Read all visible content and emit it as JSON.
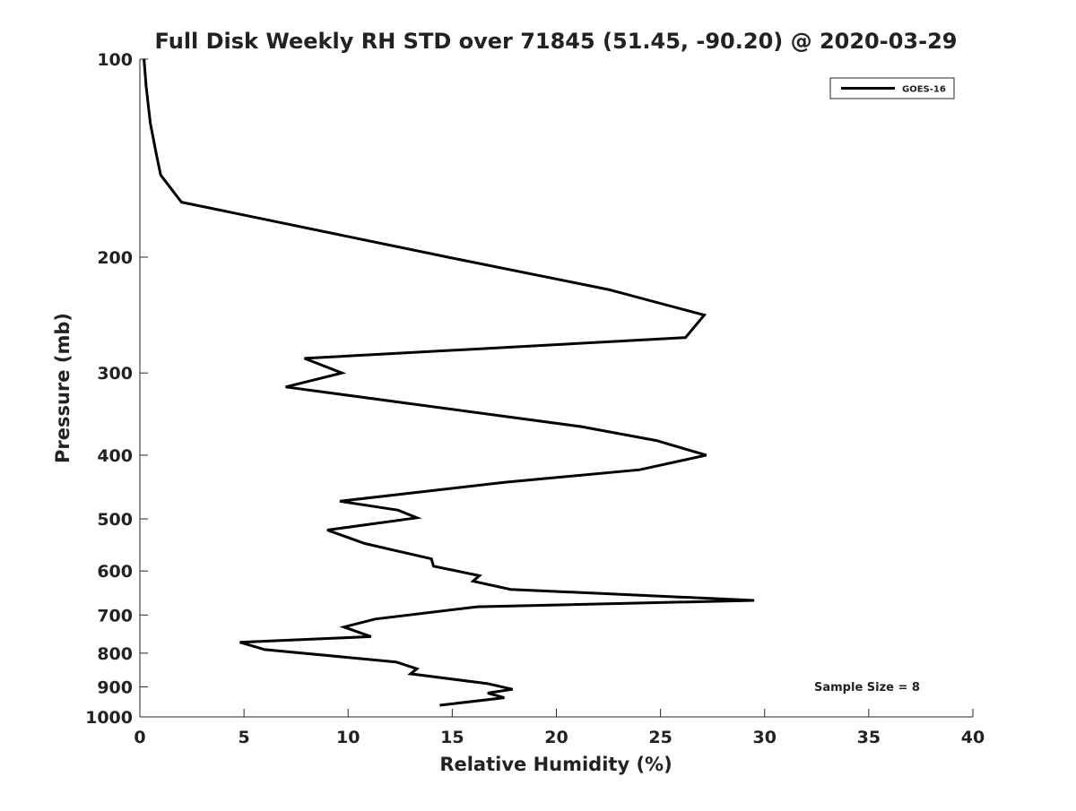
{
  "chart_data": {
    "type": "line",
    "title": "Full Disk Weekly RH STD over 71845 (51.45, -90.20) @ 2020-03-29",
    "xlabel": "Relative Humidity (%)",
    "ylabel": "Pressure (mb)",
    "xlim": [
      0,
      40
    ],
    "ylim": [
      1000,
      100
    ],
    "y_scale": "log",
    "y_inverted": true,
    "grid": false,
    "legend_position": "top-right",
    "x_ticks": [
      "0",
      "5",
      "10",
      "15",
      "20",
      "25",
      "30",
      "35",
      "40"
    ],
    "y_ticks": [
      "100",
      "200",
      "300",
      "400",
      "500",
      "600",
      "700",
      "800",
      "900",
      "1000"
    ],
    "annotation": "Sample Size = 8",
    "series": [
      {
        "name": "GOES-16",
        "color": "#000000",
        "points": [
          [
            0.2,
            100
          ],
          [
            0.3,
            110
          ],
          [
            0.5,
            125
          ],
          [
            0.8,
            140
          ],
          [
            1.0,
            150
          ],
          [
            2.0,
            165
          ],
          [
            14.8,
            200
          ],
          [
            22.5,
            224
          ],
          [
            27.1,
            245
          ],
          [
            26.2,
            265
          ],
          [
            7.9,
            285
          ],
          [
            9.7,
            300
          ],
          [
            7.0,
            315
          ],
          [
            21.2,
            362
          ],
          [
            24.8,
            380
          ],
          [
            27.2,
            400
          ],
          [
            24.0,
            421
          ],
          [
            17.5,
            440
          ],
          [
            9.6,
            470
          ],
          [
            12.4,
            485
          ],
          [
            13.3,
            498
          ],
          [
            9.0,
            520
          ],
          [
            10.8,
            545
          ],
          [
            14.0,
            575
          ],
          [
            14.1,
            590
          ],
          [
            16.3,
            610
          ],
          [
            16.0,
            622
          ],
          [
            17.8,
            640
          ],
          [
            29.5,
            665
          ],
          [
            16.2,
            680
          ],
          [
            11.3,
            710
          ],
          [
            9.8,
            730
          ],
          [
            11.1,
            755
          ],
          [
            4.8,
            770
          ],
          [
            6.0,
            790
          ],
          [
            12.3,
            825
          ],
          [
            13.3,
            845
          ],
          [
            13.0,
            860
          ],
          [
            16.7,
            890
          ],
          [
            17.9,
            908
          ],
          [
            16.7,
            920
          ],
          [
            17.5,
            935
          ],
          [
            14.4,
            960
          ]
        ]
      }
    ]
  }
}
